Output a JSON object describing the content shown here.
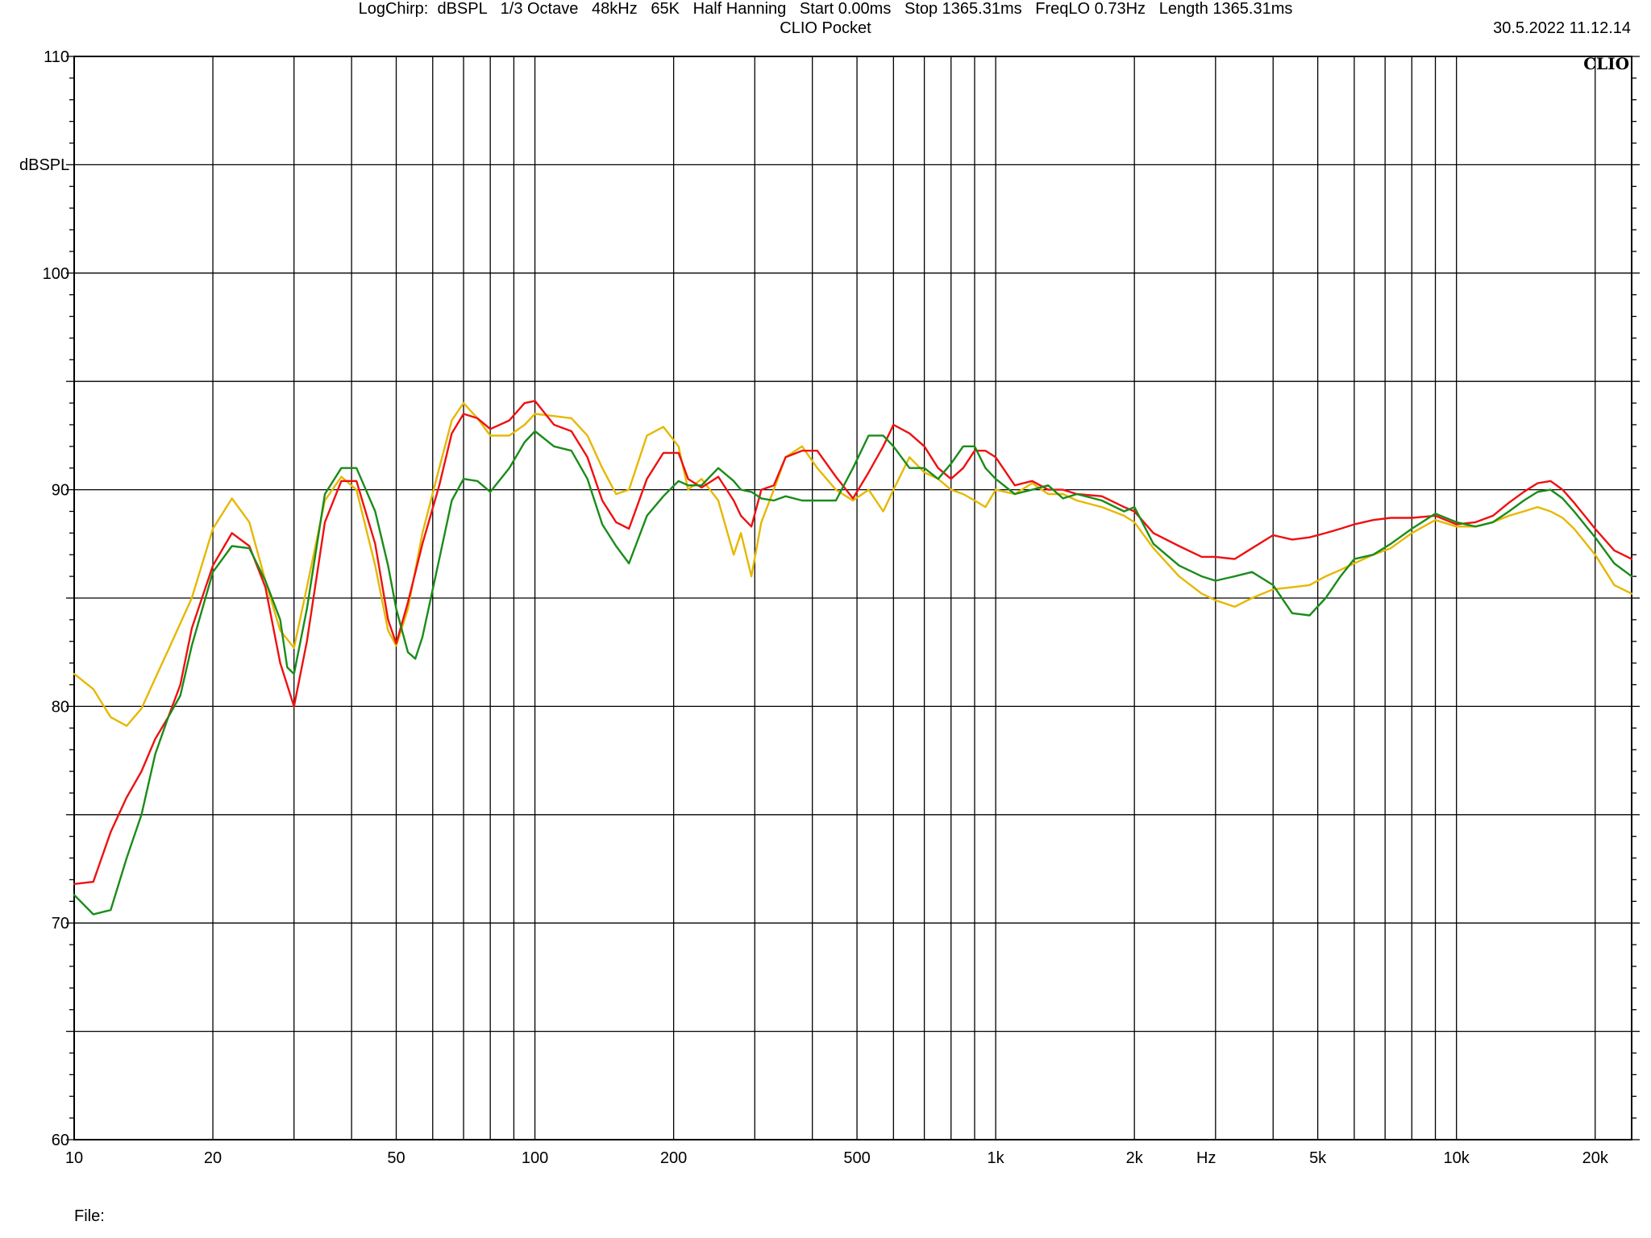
{
  "header": {
    "title": "CLIO Pocket",
    "timestamp": "30.5.2022 11.12.14"
  },
  "footer": {
    "settings": "LogChirp:  dBSPL   1/3 Octave   48kHz   65K   Half Hanning   Start 0.00ms   Stop 1365.31ms   FreqLO 0.73Hz   Length 1365.31ms",
    "file_label": "File:"
  },
  "brand": "CLIO",
  "chart_data": {
    "type": "line",
    "title": "CLIO Pocket",
    "xlabel": "Hz",
    "ylabel": "dBSPL",
    "x_scale": "log",
    "xlim": [
      10,
      24000
    ],
    "ylim": [
      60,
      110
    ],
    "x_ticks": [
      10,
      20,
      50,
      100,
      200,
      500,
      1000,
      2000,
      5000,
      10000,
      20000
    ],
    "x_tick_labels": [
      "10",
      "20",
      "50",
      "100",
      "200",
      "500",
      "1k",
      "2k",
      "5k",
      "10k",
      "20k"
    ],
    "y_ticks": [
      60,
      70,
      80,
      90,
      100,
      110
    ],
    "y_tick_labels": [
      "60",
      "70",
      "80",
      "90",
      "100",
      "110"
    ],
    "grid": true,
    "series": [
      {
        "color": "#e6b800",
        "points": [
          [
            10,
            81.5
          ],
          [
            11,
            80.8
          ],
          [
            12,
            79.5
          ],
          [
            13,
            79.1
          ],
          [
            14,
            79.9
          ],
          [
            15,
            81.3
          ],
          [
            16,
            82.6
          ],
          [
            18,
            85.0
          ],
          [
            20,
            88.2
          ],
          [
            22,
            89.6
          ],
          [
            24,
            88.5
          ],
          [
            26,
            85.8
          ],
          [
            28,
            83.5
          ],
          [
            30,
            82.7
          ],
          [
            32,
            85.5
          ],
          [
            35,
            89.5
          ],
          [
            38,
            90.6
          ],
          [
            41,
            90.0
          ],
          [
            45,
            86.5
          ],
          [
            48,
            83.5
          ],
          [
            50,
            82.8
          ],
          [
            53,
            84.5
          ],
          [
            57,
            88.0
          ],
          [
            62,
            91.0
          ],
          [
            66,
            93.2
          ],
          [
            70,
            94.0
          ],
          [
            75,
            93.3
          ],
          [
            80,
            92.5
          ],
          [
            88,
            92.5
          ],
          [
            95,
            93.0
          ],
          [
            100,
            93.5
          ],
          [
            110,
            93.4
          ],
          [
            120,
            93.3
          ],
          [
            130,
            92.5
          ],
          [
            140,
            91.0
          ],
          [
            150,
            89.8
          ],
          [
            160,
            90.0
          ],
          [
            175,
            92.5
          ],
          [
            190,
            92.9
          ],
          [
            205,
            92.0
          ],
          [
            215,
            90.0
          ],
          [
            230,
            90.5
          ],
          [
            250,
            89.5
          ],
          [
            270,
            87.0
          ],
          [
            280,
            88.0
          ],
          [
            295,
            86.0
          ],
          [
            310,
            88.5
          ],
          [
            330,
            90.0
          ],
          [
            350,
            91.5
          ],
          [
            380,
            92.0
          ],
          [
            410,
            91.0
          ],
          [
            450,
            90.0
          ],
          [
            490,
            89.5
          ],
          [
            530,
            90.0
          ],
          [
            570,
            89.0
          ],
          [
            600,
            90.0
          ],
          [
            650,
            91.5
          ],
          [
            700,
            90.8
          ],
          [
            750,
            90.5
          ],
          [
            800,
            90.0
          ],
          [
            850,
            89.8
          ],
          [
            900,
            89.5
          ],
          [
            950,
            89.2
          ],
          [
            1000,
            90.0
          ],
          [
            1100,
            89.8
          ],
          [
            1200,
            90.3
          ],
          [
            1300,
            89.8
          ],
          [
            1400,
            89.8
          ],
          [
            1500,
            89.5
          ],
          [
            1700,
            89.2
          ],
          [
            1900,
            88.8
          ],
          [
            2000,
            88.5
          ],
          [
            2200,
            87.3
          ],
          [
            2500,
            86.0
          ],
          [
            2800,
            85.2
          ],
          [
            3000,
            84.9
          ],
          [
            3300,
            84.6
          ],
          [
            3600,
            85.0
          ],
          [
            4000,
            85.4
          ],
          [
            4400,
            85.5
          ],
          [
            4800,
            85.6
          ],
          [
            5200,
            86.0
          ],
          [
            5600,
            86.3
          ],
          [
            6000,
            86.6
          ],
          [
            6600,
            87.0
          ],
          [
            7200,
            87.3
          ],
          [
            8000,
            88.0
          ],
          [
            9000,
            88.6
          ],
          [
            10000,
            88.3
          ],
          [
            11000,
            88.3
          ],
          [
            12000,
            88.5
          ],
          [
            13000,
            88.8
          ],
          [
            14000,
            89.0
          ],
          [
            15000,
            89.2
          ],
          [
            16000,
            89.0
          ],
          [
            17000,
            88.7
          ],
          [
            18000,
            88.2
          ],
          [
            20000,
            87.0
          ],
          [
            22000,
            85.6
          ],
          [
            24000,
            85.2
          ]
        ]
      },
      {
        "color": "#ee1111",
        "points": [
          [
            10,
            71.8
          ],
          [
            11,
            71.9
          ],
          [
            12,
            74.2
          ],
          [
            13,
            75.8
          ],
          [
            14,
            77.0
          ],
          [
            15,
            78.5
          ],
          [
            16,
            79.5
          ],
          [
            17,
            81.0
          ],
          [
            18,
            83.6
          ],
          [
            20,
            86.5
          ],
          [
            22,
            88.0
          ],
          [
            24,
            87.4
          ],
          [
            26,
            85.5
          ],
          [
            28,
            82.0
          ],
          [
            30,
            80.0
          ],
          [
            32,
            83.0
          ],
          [
            35,
            88.5
          ],
          [
            38,
            90.4
          ],
          [
            41,
            90.4
          ],
          [
            45,
            87.5
          ],
          [
            48,
            84.0
          ],
          [
            50,
            82.9
          ],
          [
            53,
            84.8
          ],
          [
            57,
            87.5
          ],
          [
            62,
            90.2
          ],
          [
            66,
            92.6
          ],
          [
            70,
            93.5
          ],
          [
            75,
            93.3
          ],
          [
            80,
            92.8
          ],
          [
            88,
            93.2
          ],
          [
            95,
            94.0
          ],
          [
            100,
            94.1
          ],
          [
            110,
            93.0
          ],
          [
            120,
            92.7
          ],
          [
            130,
            91.5
          ],
          [
            140,
            89.5
          ],
          [
            150,
            88.5
          ],
          [
            160,
            88.2
          ],
          [
            175,
            90.5
          ],
          [
            190,
            91.7
          ],
          [
            205,
            91.7
          ],
          [
            215,
            90.5
          ],
          [
            230,
            90.1
          ],
          [
            250,
            90.6
          ],
          [
            270,
            89.5
          ],
          [
            280,
            88.8
          ],
          [
            295,
            88.3
          ],
          [
            310,
            90.0
          ],
          [
            330,
            90.2
          ],
          [
            350,
            91.5
          ],
          [
            380,
            91.8
          ],
          [
            410,
            91.8
          ],
          [
            450,
            90.6
          ],
          [
            490,
            89.6
          ],
          [
            530,
            90.8
          ],
          [
            570,
            92.0
          ],
          [
            600,
            93.0
          ],
          [
            650,
            92.6
          ],
          [
            700,
            92.0
          ],
          [
            750,
            91.0
          ],
          [
            800,
            90.5
          ],
          [
            850,
            91.0
          ],
          [
            900,
            91.8
          ],
          [
            950,
            91.8
          ],
          [
            1000,
            91.5
          ],
          [
            1100,
            90.2
          ],
          [
            1200,
            90.4
          ],
          [
            1300,
            90.0
          ],
          [
            1400,
            90.0
          ],
          [
            1500,
            89.8
          ],
          [
            1700,
            89.7
          ],
          [
            1900,
            89.2
          ],
          [
            2000,
            89.0
          ],
          [
            2200,
            88.0
          ],
          [
            2500,
            87.4
          ],
          [
            2800,
            86.9
          ],
          [
            3000,
            86.9
          ],
          [
            3300,
            86.8
          ],
          [
            3600,
            87.3
          ],
          [
            4000,
            87.9
          ],
          [
            4400,
            87.7
          ],
          [
            4800,
            87.8
          ],
          [
            5200,
            88.0
          ],
          [
            5600,
            88.2
          ],
          [
            6000,
            88.4
          ],
          [
            6600,
            88.6
          ],
          [
            7200,
            88.7
          ],
          [
            8000,
            88.7
          ],
          [
            9000,
            88.8
          ],
          [
            10000,
            88.4
          ],
          [
            11000,
            88.5
          ],
          [
            12000,
            88.8
          ],
          [
            13000,
            89.4
          ],
          [
            14000,
            89.9
          ],
          [
            15000,
            90.3
          ],
          [
            16000,
            90.4
          ],
          [
            17000,
            90.0
          ],
          [
            18000,
            89.4
          ],
          [
            20000,
            88.2
          ],
          [
            22000,
            87.2
          ],
          [
            24000,
            86.8
          ]
        ]
      },
      {
        "color": "#1a8c1a",
        "points": [
          [
            10,
            71.3
          ],
          [
            11,
            70.4
          ],
          [
            12,
            70.6
          ],
          [
            13,
            73.0
          ],
          [
            14,
            75.0
          ],
          [
            15,
            77.8
          ],
          [
            16,
            79.5
          ],
          [
            17,
            80.5
          ],
          [
            18,
            82.8
          ],
          [
            20,
            86.2
          ],
          [
            22,
            87.4
          ],
          [
            24,
            87.3
          ],
          [
            26,
            85.8
          ],
          [
            28,
            84.0
          ],
          [
            29,
            81.8
          ],
          [
            30,
            81.5
          ],
          [
            32,
            84.5
          ],
          [
            35,
            89.8
          ],
          [
            38,
            91.0
          ],
          [
            41,
            91.0
          ],
          [
            45,
            89.0
          ],
          [
            48,
            86.5
          ],
          [
            50,
            84.5
          ],
          [
            53,
            82.5
          ],
          [
            55,
            82.2
          ],
          [
            57,
            83.2
          ],
          [
            62,
            86.8
          ],
          [
            66,
            89.5
          ],
          [
            70,
            90.5
          ],
          [
            75,
            90.4
          ],
          [
            80,
            89.9
          ],
          [
            88,
            91.0
          ],
          [
            95,
            92.2
          ],
          [
            100,
            92.7
          ],
          [
            110,
            92.0
          ],
          [
            120,
            91.8
          ],
          [
            130,
            90.5
          ],
          [
            140,
            88.4
          ],
          [
            150,
            87.4
          ],
          [
            160,
            86.6
          ],
          [
            175,
            88.8
          ],
          [
            190,
            89.7
          ],
          [
            205,
            90.4
          ],
          [
            215,
            90.2
          ],
          [
            230,
            90.2
          ],
          [
            250,
            91.0
          ],
          [
            270,
            90.4
          ],
          [
            280,
            90.0
          ],
          [
            295,
            89.9
          ],
          [
            310,
            89.6
          ],
          [
            330,
            89.5
          ],
          [
            350,
            89.7
          ],
          [
            380,
            89.5
          ],
          [
            410,
            89.5
          ],
          [
            450,
            89.5
          ],
          [
            490,
            91.0
          ],
          [
            530,
            92.5
          ],
          [
            570,
            92.5
          ],
          [
            600,
            92.0
          ],
          [
            650,
            91.0
          ],
          [
            700,
            91.0
          ],
          [
            750,
            90.5
          ],
          [
            800,
            91.2
          ],
          [
            850,
            92.0
          ],
          [
            900,
            92.0
          ],
          [
            950,
            91.0
          ],
          [
            1000,
            90.5
          ],
          [
            1100,
            89.8
          ],
          [
            1200,
            90.0
          ],
          [
            1300,
            90.2
          ],
          [
            1400,
            89.6
          ],
          [
            1500,
            89.8
          ],
          [
            1700,
            89.5
          ],
          [
            1900,
            89.0
          ],
          [
            2000,
            89.2
          ],
          [
            2200,
            87.5
          ],
          [
            2500,
            86.5
          ],
          [
            2800,
            86.0
          ],
          [
            3000,
            85.8
          ],
          [
            3300,
            86.0
          ],
          [
            3600,
            86.2
          ],
          [
            4000,
            85.6
          ],
          [
            4400,
            84.3
          ],
          [
            4800,
            84.2
          ],
          [
            5200,
            85.0
          ],
          [
            5600,
            86.0
          ],
          [
            6000,
            86.8
          ],
          [
            6600,
            87.0
          ],
          [
            7200,
            87.5
          ],
          [
            8000,
            88.2
          ],
          [
            9000,
            88.9
          ],
          [
            10000,
            88.5
          ],
          [
            11000,
            88.3
          ],
          [
            12000,
            88.5
          ],
          [
            13000,
            89.0
          ],
          [
            14000,
            89.5
          ],
          [
            15000,
            89.9
          ],
          [
            16000,
            90.0
          ],
          [
            17000,
            89.6
          ],
          [
            18000,
            89.0
          ],
          [
            20000,
            87.8
          ],
          [
            22000,
            86.6
          ],
          [
            24000,
            86.0
          ]
        ]
      }
    ]
  }
}
